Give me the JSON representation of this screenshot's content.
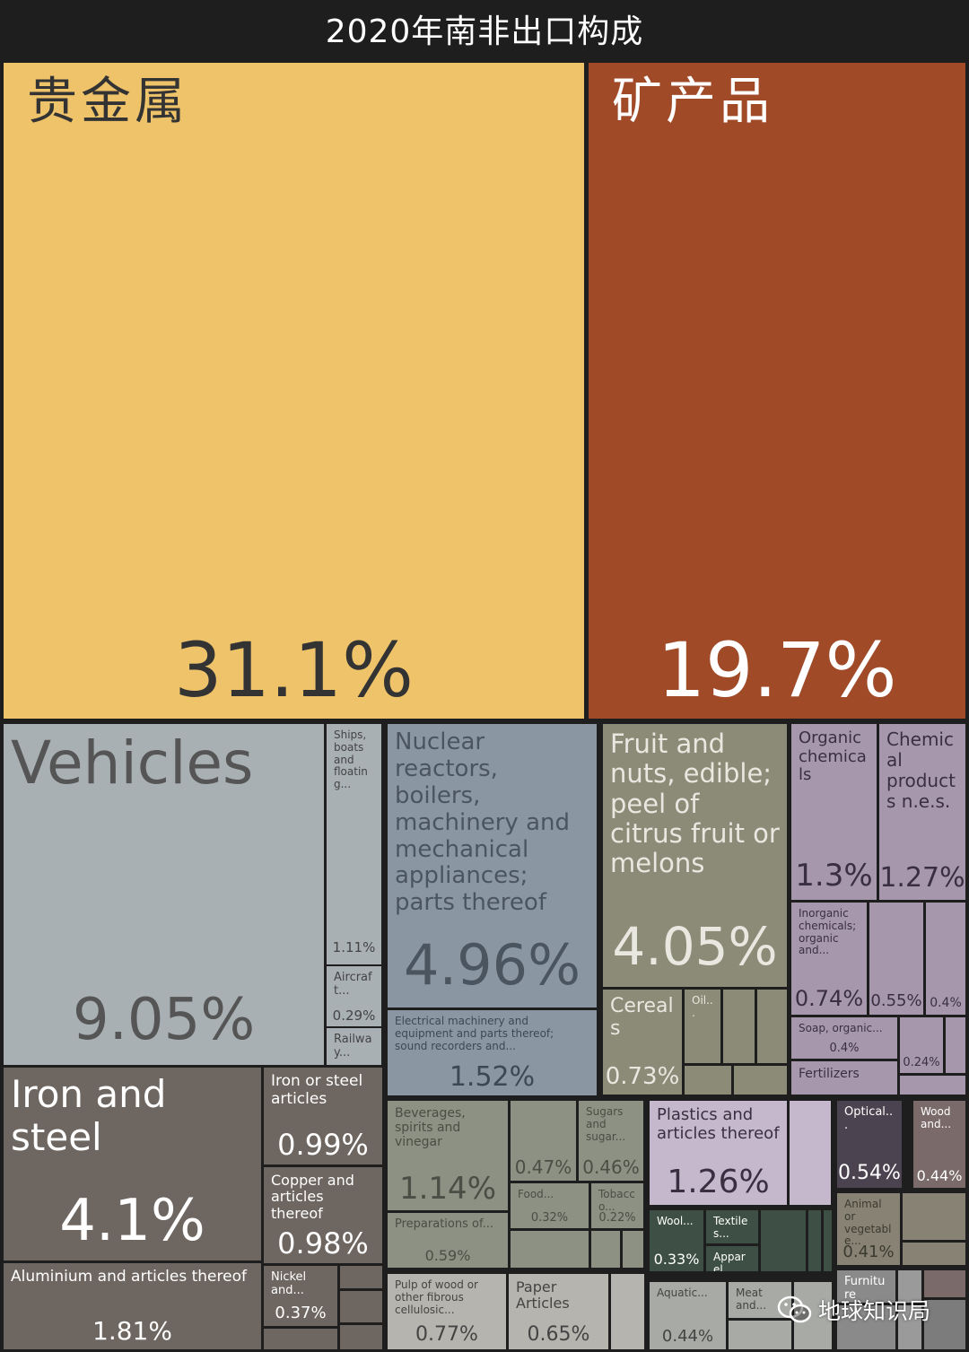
{
  "chart_data": {
    "type": "treemap",
    "title": "2020年南非出口构成",
    "tiles": [
      {
        "label": "贵金属",
        "value": "31.1%",
        "color": "#efc36a"
      },
      {
        "label": "矿产品",
        "value": "19.7%",
        "color": "#a04a28"
      },
      {
        "label": "Vehicles",
        "value": "9.05%",
        "color": "#a9b0b4"
      },
      {
        "label": "Ships, boats and floating...",
        "value": "1.11%",
        "color": "#a9b0b4"
      },
      {
        "label": "Aircraft...",
        "value": "0.29%",
        "color": "#a9b0b4"
      },
      {
        "label": "Railway...",
        "value": "",
        "color": "#a9b0b4"
      },
      {
        "label": "Nuclear reactors, boilers, machinery and mechanical appliances; parts thereof",
        "value": "4.96%",
        "color": "#8a97a3"
      },
      {
        "label": "Electrical machinery and equipment and parts thereof; sound recorders and...",
        "value": "1.52%",
        "color": "#8a97a3"
      },
      {
        "label": "Fruit and nuts, edible; peel of citrus fruit or melons",
        "value": "4.05%",
        "color": "#8c8b77"
      },
      {
        "label": "Cereals",
        "value": "0.73%",
        "color": "#8c8b77"
      },
      {
        "label": "Oil...",
        "value": "",
        "color": "#8c8b77"
      },
      {
        "label": "Organic chemicals",
        "value": "1.3%",
        "color": "#a697ad"
      },
      {
        "label": "Chemical products n.e.s.",
        "value": "1.27%",
        "color": "#a697ad"
      },
      {
        "label": "Inorganic chemicals; organic and...",
        "value": "0.74%",
        "color": "#a697ad"
      },
      {
        "label": "",
        "value": "0.55%",
        "color": "#a697ad"
      },
      {
        "label": "",
        "value": "0.4%",
        "color": "#a697ad"
      },
      {
        "label": "Soap, organic...",
        "value": "0.4%",
        "color": "#a697ad"
      },
      {
        "label": "",
        "value": "0.24%",
        "color": "#a697ad"
      },
      {
        "label": "Fertilizers",
        "value": "",
        "color": "#a697ad"
      },
      {
        "label": "Iron and steel",
        "value": "4.1%",
        "color": "#6e6660"
      },
      {
        "label": "Iron or steel articles",
        "value": "0.99%",
        "color": "#6e6660"
      },
      {
        "label": "Copper and articles thereof",
        "value": "0.98%",
        "color": "#6e6660"
      },
      {
        "label": "Aluminium and articles thereof",
        "value": "1.81%",
        "color": "#6e6660"
      },
      {
        "label": "Nickel and...",
        "value": "0.37%",
        "color": "#6e6660"
      },
      {
        "label": "Beverages, spirits and vinegar",
        "value": "1.14%",
        "color": "#8c9183"
      },
      {
        "label": "",
        "value": "0.47%",
        "color": "#8c9183"
      },
      {
        "label": "Sugars and sugar...",
        "value": "0.46%",
        "color": "#8c9183"
      },
      {
        "label": "Food...",
        "value": "0.32%",
        "color": "#8c9183"
      },
      {
        "label": "Tobacco...",
        "value": "0.22%",
        "color": "#8c9183"
      },
      {
        "label": "Preparations of...",
        "value": "0.59%",
        "color": "#8c9183"
      },
      {
        "label": "Plastics and articles thereof",
        "value": "1.26%",
        "color": "#c5b8cc"
      },
      {
        "label": "Optical...",
        "value": "0.54%",
        "color": "#4c4350"
      },
      {
        "label": "Wood and...",
        "value": "0.44%",
        "color": "#7a6a6a"
      },
      {
        "label": "Wool...",
        "value": "0.33%",
        "color": "#3e5046"
      },
      {
        "label": "Textiles...",
        "value": "",
        "color": "#3e5046"
      },
      {
        "label": "Apparel...",
        "value": "",
        "color": "#3e5046"
      },
      {
        "label": "Animal or vegetable...",
        "value": "0.41%",
        "color": "#878273"
      },
      {
        "label": "Pulp of wood or other fibrous cellulosic...",
        "value": "0.77%",
        "color": "#b6b4ae"
      },
      {
        "label": "Paper Articles",
        "value": "0.65%",
        "color": "#b6b4ae"
      },
      {
        "label": "Aquatic...",
        "value": "0.44%",
        "color": "#a8aaa6"
      },
      {
        "label": "Meat and...",
        "value": "",
        "color": "#a8aaa6"
      },
      {
        "label": "Furniture",
        "value": "",
        "color": "#8a8a8a"
      }
    ],
    "filler_colors": {
      "fruit": "#8c8b77",
      "metal": "#6e6660",
      "food": "#8c9183",
      "plastic": "#c5b8cc",
      "textile": "#3e5046",
      "animal": "#878273",
      "paper": "#b6b4ae",
      "aquatic": "#a8aaa6",
      "furniture": "#8a8a8a",
      "wood": "#7a6a6a",
      "misc": "#9a9a9a",
      "chem": "#a697ad",
      "vehicle": "#a9b0b4",
      "stone": "#7c7c7c"
    }
  },
  "watermark": {
    "text": "地球知识局",
    "icon": "wechat-icon"
  }
}
